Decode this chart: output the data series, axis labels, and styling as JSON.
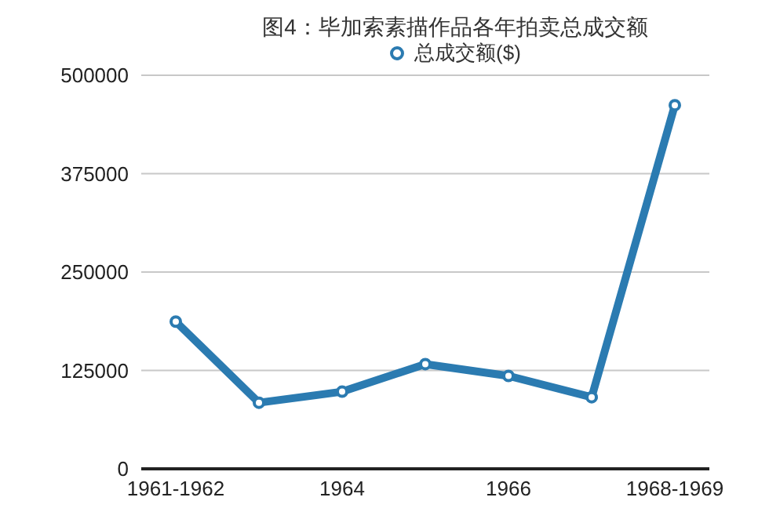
{
  "chart_data": {
    "type": "line",
    "title": "图4：毕加索素描作品各年拍卖总成交额",
    "categories": [
      "1961-1962",
      null,
      "1964",
      null,
      "1966",
      null,
      "1968-1969"
    ],
    "series": [
      {
        "name": "总成交额($)",
        "color": "#2b7bb1",
        "values": [
          187000,
          84000,
          98000,
          133000,
          118000,
          91000,
          462000
        ]
      }
    ],
    "ylim": [
      0,
      500000
    ],
    "yticks": [
      0,
      125000,
      250000,
      375000,
      500000
    ],
    "grid": "y",
    "legend": "top",
    "marker": "circle",
    "line_style": "solid"
  }
}
